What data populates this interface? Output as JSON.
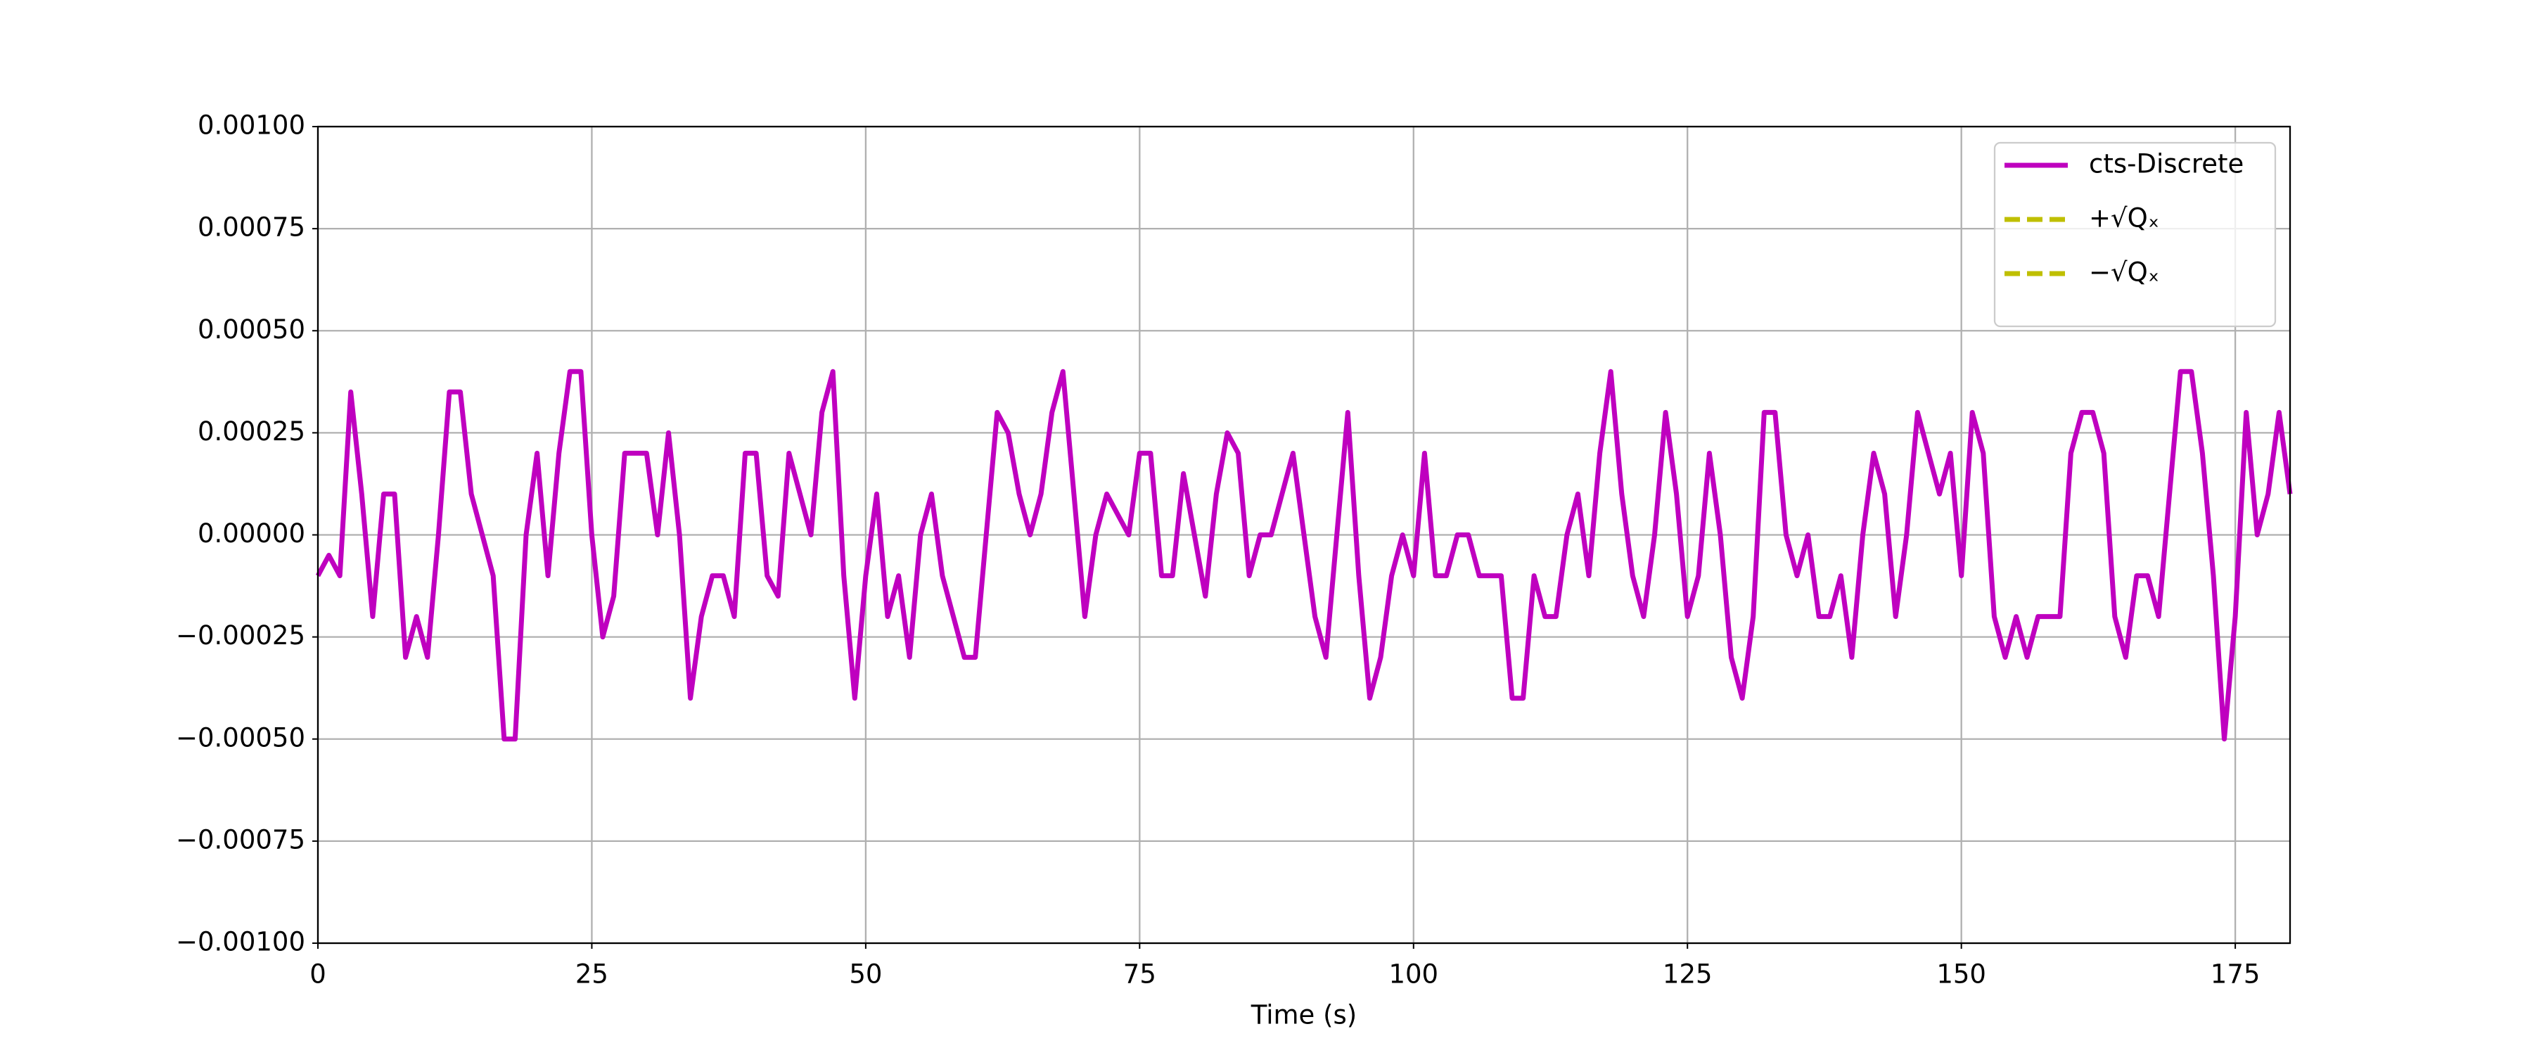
{
  "chart_data": {
    "type": "line",
    "xlabel": "Time (s)",
    "xlim": [
      0,
      180
    ],
    "xticks": [
      0,
      25,
      50,
      75,
      100,
      125,
      150,
      175
    ],
    "ylim": [
      -0.001,
      0.001
    ],
    "yticks": [
      {
        "value": -0.001,
        "label": "−0.00100"
      },
      {
        "value": -0.00075,
        "label": "−0.00075"
      },
      {
        "value": -0.0005,
        "label": "−0.00050"
      },
      {
        "value": -0.00025,
        "label": "−0.00025"
      },
      {
        "value": 0,
        "label": "0.00000"
      },
      {
        "value": 0.00025,
        "label": "0.00025"
      },
      {
        "value": 0.0005,
        "label": "0.00050"
      },
      {
        "value": 0.00075,
        "label": "0.00075"
      },
      {
        "value": 0.001,
        "label": "0.00100"
      }
    ],
    "grid": true,
    "legend": "upper right",
    "series": [
      {
        "name": "cts-Discrete",
        "color": "#bf00bf",
        "dash": false,
        "x": [
          0,
          1,
          2,
          3,
          4,
          5,
          6,
          7,
          8,
          9,
          10,
          11,
          12,
          13,
          14,
          15,
          16,
          17,
          18,
          19,
          20,
          21,
          22,
          23,
          24,
          25,
          26,
          27,
          28,
          29,
          30,
          31,
          32,
          33,
          34,
          35,
          36,
          37,
          38,
          39,
          40,
          41,
          42,
          43,
          44,
          45,
          46,
          47,
          48,
          49,
          50,
          51,
          52,
          53,
          54,
          55,
          56,
          57,
          58,
          59,
          60,
          61,
          62,
          63,
          64,
          65,
          66,
          67,
          68,
          69,
          70,
          71,
          72,
          73,
          74,
          75,
          76,
          77,
          78,
          79,
          80,
          81,
          82,
          83,
          84,
          85,
          86,
          87,
          88,
          89,
          90,
          91,
          92,
          93,
          94,
          95,
          96,
          97,
          98,
          99,
          100,
          101,
          102,
          103,
          104,
          105,
          106,
          107,
          108,
          109,
          110,
          111,
          112,
          113,
          114,
          115,
          116,
          117,
          118,
          119,
          120,
          121,
          122,
          123,
          124,
          125,
          126,
          127,
          128,
          129,
          130,
          131,
          132,
          133,
          134,
          135,
          136,
          137,
          138,
          139,
          140,
          141,
          142,
          143,
          144,
          145,
          146,
          147,
          148,
          149,
          150,
          151,
          152,
          153,
          154,
          155,
          156,
          157,
          158,
          159,
          160,
          161,
          162,
          163,
          164,
          165,
          166,
          167,
          168,
          169,
          170,
          171,
          172,
          173,
          174,
          175,
          176,
          177,
          178,
          179,
          180
        ],
        "values": [
          -0.0001,
          -5e-05,
          -0.0001,
          0.00035,
          0.0001,
          -0.0002,
          0.0001,
          0.0001,
          -0.0003,
          -0.0002,
          -0.0003,
          0.0,
          0.00035,
          0.00035,
          0.0001,
          0.0,
          -0.0001,
          -0.0005,
          -0.0005,
          0.0,
          0.0002,
          -0.0001,
          0.0002,
          0.0004,
          0.0004,
          0.0,
          -0.00025,
          -0.00015,
          0.0002,
          0.0002,
          0.0002,
          0.0,
          0.00025,
          0.0,
          -0.0004,
          -0.0002,
          -0.0001,
          -0.0001,
          -0.0002,
          0.0002,
          0.0002,
          -0.0001,
          -0.00015,
          0.0002,
          0.0001,
          0.0,
          0.0003,
          0.0004,
          -0.0001,
          -0.0004,
          -0.0001,
          0.0001,
          -0.0002,
          -0.0001,
          -0.0003,
          0.0,
          0.0001,
          -0.0001,
          -0.0002,
          -0.0003,
          -0.0003,
          0.0,
          0.0003,
          0.00025,
          0.0001,
          0.0,
          0.0001,
          0.0003,
          0.0004,
          0.0001,
          -0.0002,
          0.0,
          0.0001,
          5e-05,
          0.0,
          0.0002,
          0.0002,
          -0.0001,
          -0.0001,
          0.00015,
          0.0,
          -0.00015,
          0.0001,
          0.00025,
          0.0002,
          -0.0001,
          0.0,
          0.0,
          0.0001,
          0.0002,
          0.0,
          -0.0002,
          -0.0003,
          0.0,
          0.0003,
          -0.0001,
          -0.0004,
          -0.0003,
          -0.0001,
          0.0,
          -0.0001,
          0.0002,
          -0.0001,
          -0.0001,
          0.0,
          0.0,
          -0.0001,
          -0.0001,
          -0.0001,
          -0.0004,
          -0.0004,
          -0.0001,
          -0.0002,
          -0.0002,
          0.0,
          0.0001,
          -0.0001,
          0.0002,
          0.0004,
          0.0001,
          -0.0001,
          -0.0002,
          0.0,
          0.0003,
          0.0001,
          -0.0002,
          -0.0001,
          0.0002,
          0.0,
          -0.0003,
          -0.0004,
          -0.0002,
          0.0003,
          0.0003,
          0.0,
          -0.0001,
          0.0,
          -0.0002,
          -0.0002,
          -0.0001,
          -0.0003,
          0.0,
          0.0002,
          0.0001,
          -0.0002,
          0.0,
          0.0003,
          0.0002,
          0.0001,
          0.0002,
          -0.0001,
          0.0003,
          0.0002,
          -0.0002,
          -0.0003,
          -0.0002,
          -0.0003,
          -0.0002,
          -0.0002,
          -0.0002,
          0.0002,
          0.0003,
          0.0003,
          0.0002,
          -0.0002,
          -0.0003,
          -0.0001,
          -0.0001,
          -0.0002,
          0.0001,
          0.0004,
          0.0004,
          0.0002,
          -0.0001,
          -0.0005,
          -0.0002,
          0.0003,
          0.0,
          0.0001,
          0.0003,
          0.0001
        ]
      },
      {
        "name": "+√Qₓ",
        "color": "#bfbf00",
        "dash": true,
        "x": [],
        "values": []
      },
      {
        "name": "−√Qₓ",
        "color": "#bfbf00",
        "dash": true,
        "x": [],
        "values": []
      }
    ]
  }
}
